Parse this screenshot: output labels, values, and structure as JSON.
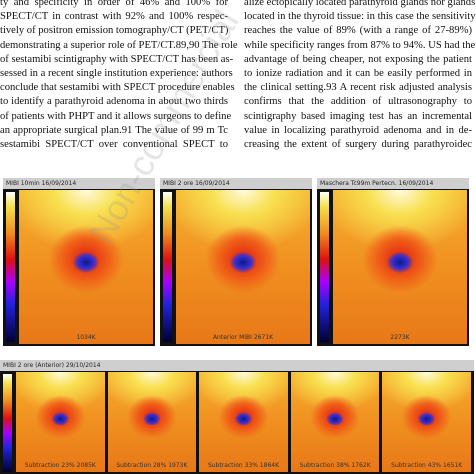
{
  "columns": [
    {
      "lines": [
        "ty and specificity in order of 46% and 100% for",
        "SPECT/CT in contrast with 92% and 100% respec-",
        "tively of positron emission tomography/CT (PET/CT)",
        "demonstrating a superior role of PET/CT.89,90 The role",
        "of sestamibi scintigraphy with SPECT/CT has been as-",
        "sessed in a recent single institution experience: authors",
        "conclude that sestamibi with SPECT procedure enables",
        "to identify a parathyroid adenoma in about two thirds",
        "of patients with PHPT and it allows surgeons to define",
        "an appropriate surgical plan.91 The value of 99 m Tc",
        "sestamibi SPECT/CT over conventional SPECT to"
      ]
    },
    {
      "lines": [
        "alize ectopically located parathyroid glands nor glands",
        "located in the thyroid tissue: in this case the sensitivity",
        "reaches the value of 89% (with a range of 27-89%)",
        "while specificity ranges from 87% to 94%. US had the",
        "advantage of being cheaper, not exposing the patient",
        "to ionize radiation and it can be easily performed in",
        "the clinical setting.93 A recent risk adjusted analysis",
        "confirms that the addition of ultrasonography to",
        "scintigraphy based imaging test has an incremental",
        "value in localizing parathyroid adenoma and in de-",
        "creasing the extent of surgery during parathyroidec"
      ]
    }
  ],
  "large_panels": [
    {
      "header": "MIBI 10min 16/09/2014",
      "footer": "1034K"
    },
    {
      "header": "MIBI 2 ore 16/09/2014",
      "footer": "Anterior MIBI 2671K"
    },
    {
      "header": "Maschera Tc99m Pertecn. 16/09/2014",
      "footer": "2273K"
    }
  ],
  "small_row": {
    "header": "MIBI 2 ore (Anterior) 29/10/2014",
    "footers": [
      "Subtraction 23% 2085K",
      "Subtraction 28% 1973K",
      "Subtraction 33% 1864K",
      "Subtraction 38% 1762K",
      "Subtraction 43% 1651K"
    ]
  },
  "watermark": "Non-commercial"
}
